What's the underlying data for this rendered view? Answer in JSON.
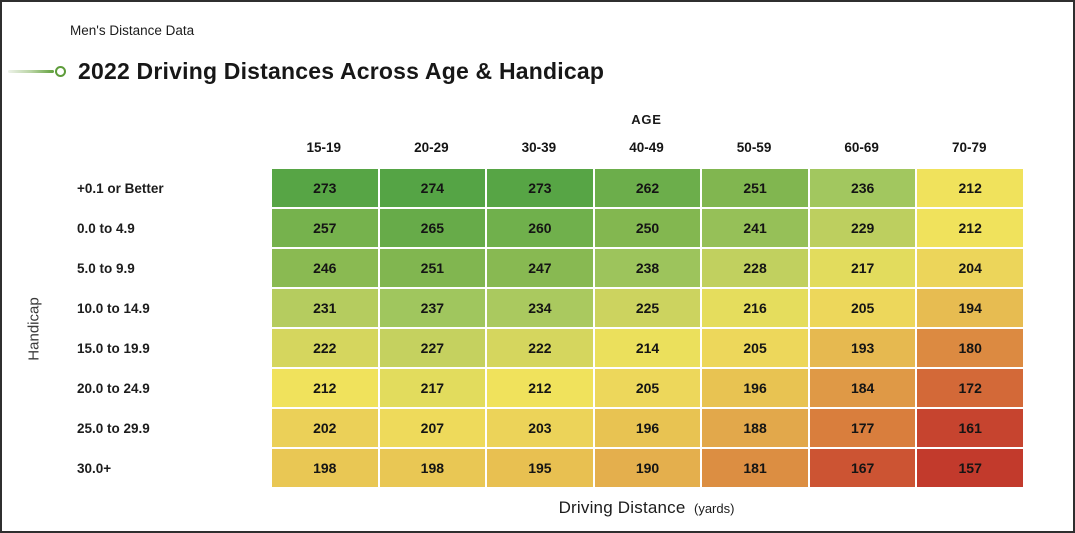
{
  "header": {
    "kicker": "Men's Distance Data",
    "title": "2022 Driving Distances Across Age & Handicap",
    "accent_color": "#5d9c3a"
  },
  "chart_data": {
    "type": "heatmap",
    "title": "2022 Driving Distances Across Age & Handicap",
    "subtitle": "Men's Distance Data",
    "x_axis_title": "AGE",
    "x_categories": [
      "15-19",
      "20-29",
      "30-39",
      "40-49",
      "50-59",
      "60-69",
      "70-79"
    ],
    "y_axis_title": "Handicap",
    "y_categories": [
      "+0.1 or Better",
      "0.0 to 4.9",
      "5.0 to 9.9",
      "10.0 to 14.9",
      "15.0 to 19.9",
      "20.0 to 24.9",
      "25.0 to 29.9",
      "30.0+"
    ],
    "values_label": "Driving Distance",
    "values_unit": "(yards)",
    "rows": [
      [
        273,
        274,
        273,
        262,
        251,
        236,
        212
      ],
      [
        257,
        265,
        260,
        250,
        241,
        229,
        212
      ],
      [
        246,
        251,
        247,
        238,
        228,
        217,
        204
      ],
      [
        231,
        237,
        234,
        225,
        216,
        205,
        194
      ],
      [
        222,
        227,
        222,
        214,
        205,
        193,
        180
      ],
      [
        212,
        217,
        212,
        205,
        196,
        184,
        172
      ],
      [
        202,
        207,
        203,
        196,
        188,
        177,
        161
      ],
      [
        198,
        198,
        195,
        190,
        181,
        167,
        157
      ]
    ],
    "value_min": 157,
    "value_max": 274,
    "legend": "none",
    "grid_line_color": "#ffffff",
    "cell_text_color": "#141414",
    "colorscale": {
      "description": "low=red high=green (RdYlGn style)",
      "stops": [
        [
          0.0,
          "#c23a2c"
        ],
        [
          0.09,
          "#cd5533"
        ],
        [
          0.17,
          "#d97e3d"
        ],
        [
          0.265,
          "#e2a84b"
        ],
        [
          0.33,
          "#e8c252"
        ],
        [
          0.41,
          "#edd75b"
        ],
        [
          0.47,
          "#f0e25c"
        ],
        [
          0.58,
          "#cdd35f"
        ],
        [
          0.675,
          "#a2c75f"
        ],
        [
          0.76,
          "#8aba52"
        ],
        [
          0.855,
          "#76b24d"
        ],
        [
          1.0,
          "#55a445"
        ]
      ]
    }
  }
}
